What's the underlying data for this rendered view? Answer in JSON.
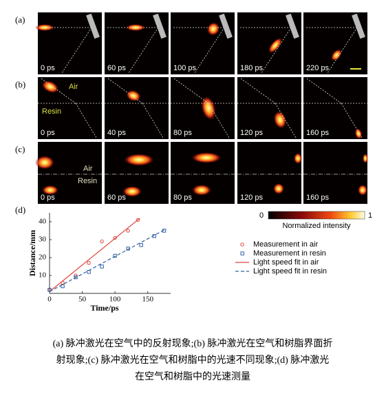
{
  "rows": [
    {
      "label": "(a)",
      "times": [
        "0 ps",
        "60 ps",
        "100 ps",
        "180 ps",
        "220 ps"
      ]
    },
    {
      "label": "(b)",
      "times": [
        "0 ps",
        "40 ps",
        "80 ps",
        "120 ps",
        "160 ps"
      ],
      "upper": "Air",
      "lower": "Resin"
    },
    {
      "label": "(c)",
      "times": [
        "0 ps",
        "60 ps",
        "80 ps",
        "120 ps",
        "160 ps"
      ],
      "upper": "Air",
      "lower": "Resin"
    }
  ],
  "colorbar": {
    "min": 0,
    "max": 1,
    "label": "Normalized intensity"
  },
  "chart_data": {
    "type": "scatter",
    "label": "(d)",
    "x_label": "Time/ps",
    "y_label": "Distance/mm",
    "xlim": [
      0,
      185
    ],
    "ylim": [
      0,
      45
    ],
    "xticks": [
      0,
      50,
      100,
      150
    ],
    "yticks": [
      10,
      20,
      30,
      40
    ],
    "series": [
      {
        "name": "Measurement in air",
        "color": "#e0413a",
        "marker": "circle",
        "x": [
          0,
          20,
          40,
          60,
          80,
          100,
          120,
          135
        ],
        "values": [
          2,
          6,
          10,
          17,
          29,
          31,
          35,
          41
        ]
      },
      {
        "name": "Measurement in resin",
        "color": "#2f5f9e",
        "marker": "square",
        "x": [
          0,
          20,
          40,
          60,
          80,
          100,
          120,
          140,
          160,
          175
        ],
        "values": [
          2,
          4,
          9,
          12,
          15,
          21,
          25,
          27,
          32,
          35
        ]
      },
      {
        "name": "Light speed fit in air",
        "color": "#e0413a",
        "marker": "solid",
        "x": [
          0,
          138
        ],
        "values": [
          1,
          42
        ]
      },
      {
        "name": "Light speed fit in resin",
        "color": "#2f5f9e",
        "marker": "dashed",
        "x": [
          0,
          178
        ],
        "values": [
          1,
          36
        ]
      }
    ]
  },
  "caption": [
    "(a) 脉冲激光在空气中的反射现象;(b) 脉冲激光在空气和树脂界面折",
    "射现象;(c) 脉冲激光在空气和树脂中的光速不同现象;(d) 脉冲激光",
    "在空气和树脂中的光速测量"
  ]
}
